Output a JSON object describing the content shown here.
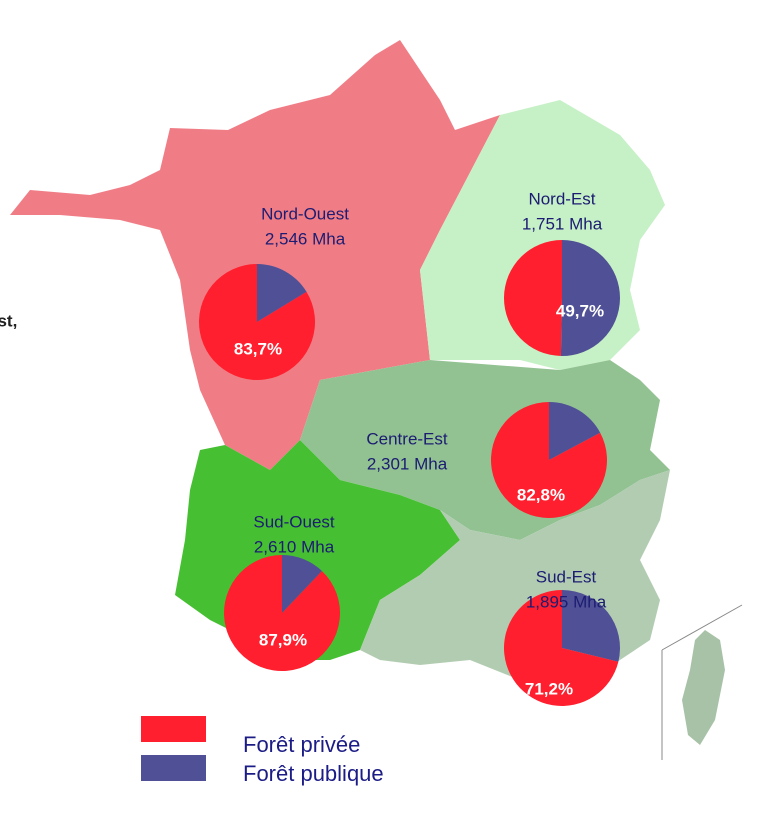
{
  "map": {
    "note": "est,",
    "legend": [
      {
        "name": "Forêt privée",
        "color": "#ff1f2e"
      },
      {
        "name": "Forêt publique",
        "color": "#505096"
      }
    ],
    "regions": [
      {
        "name": "Nord-Ouest",
        "area": "2,546 Mha",
        "values": [
          83.7,
          16.3
        ],
        "value_label": "83,7%"
      },
      {
        "name": "Nord-Est",
        "area": "1,751 Mha",
        "values": [
          49.7,
          50.3
        ],
        "value_label": "49,7%"
      },
      {
        "name": "Centre-Est",
        "area": "2,301 Mha",
        "values": [
          82.8,
          17.2
        ],
        "value_label": "82,8%"
      },
      {
        "name": "Sud-Ouest",
        "area": "2,610 Mha",
        "values": [
          87.9,
          12.1
        ],
        "value_label": "87,9%"
      },
      {
        "name": "Sud-Est",
        "area": "1,895 Mha",
        "values": [
          71.2,
          28.8
        ],
        "value_label": "71,2%"
      }
    ]
  }
}
